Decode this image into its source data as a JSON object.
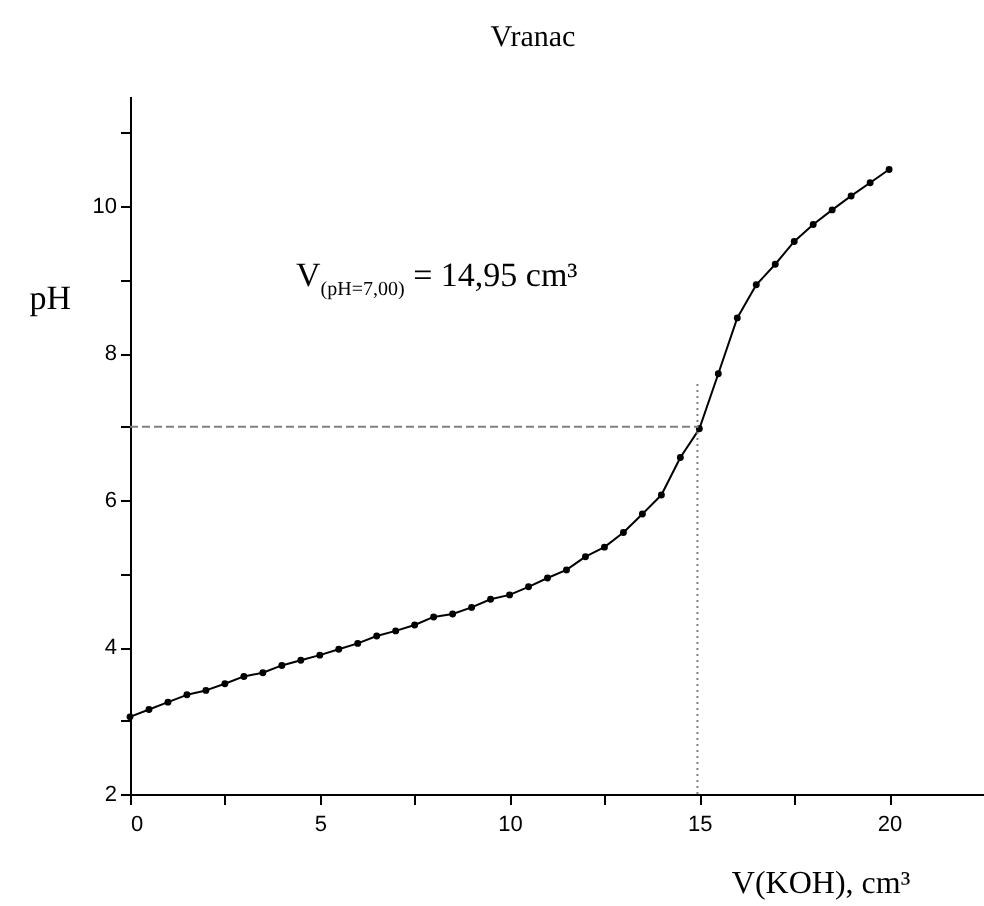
{
  "chart_data": {
    "type": "line",
    "title": "Vranac",
    "xlabel": "V(KOH), cm³",
    "ylabel": "pH",
    "x": [
      0,
      0.5,
      1,
      1.5,
      2,
      2.5,
      3,
      3.5,
      4,
      4.5,
      5,
      5.5,
      6,
      6.5,
      7,
      7.5,
      8,
      8.5,
      9,
      9.5,
      10,
      10.5,
      11,
      11.5,
      12,
      12.5,
      13,
      13.5,
      14,
      14.5,
      15,
      15.5,
      16,
      16.5,
      17,
      17.5,
      18,
      18.5,
      19,
      19.5,
      20
    ],
    "series": [
      {
        "color": "#000000",
        "values": [
          3.05,
          3.15,
          3.25,
          3.35,
          3.41,
          3.5,
          3.6,
          3.65,
          3.75,
          3.82,
          3.89,
          3.97,
          4.05,
          4.15,
          4.22,
          4.3,
          4.41,
          4.45,
          4.54,
          4.65,
          4.71,
          4.82,
          4.94,
          5.05,
          5.23,
          5.36,
          5.56,
          5.81,
          6.07,
          6.58,
          6.97,
          7.72,
          8.48,
          8.93,
          9.21,
          9.52,
          9.75,
          9.95,
          10.14,
          10.32,
          10.5
        ]
      }
    ],
    "xlim": [
      0,
      22.5
    ],
    "ylim": [
      2,
      11.5
    ],
    "xticks": [
      0,
      {
        "value": 2.5,
        "label": null
      },
      5,
      {
        "value": 7.5,
        "label": null
      },
      10,
      {
        "value": 12.5,
        "label": null
      },
      15,
      {
        "value": 17.5,
        "label": null
      },
      20
    ],
    "yticks": [
      2,
      {
        "value": 3,
        "label": null
      },
      4,
      {
        "value": 5,
        "label": null
      },
      6,
      {
        "value": 7,
        "label": null
      },
      8,
      {
        "value": 9,
        "label": null
      },
      10,
      {
        "value": 11,
        "label": null
      }
    ],
    "ref_lines": [
      {
        "axis": "y",
        "value": 7,
        "color": "#808080",
        "line_style": "dashed"
      },
      {
        "axis": "x",
        "value": 14.95,
        "color": "#808080",
        "line_style": "dotted"
      }
    ],
    "annotations": [
      "V$_{(pH=7,00)}$ = 14,95 cm³"
    ],
    "marker": "circle",
    "line_style": "solid",
    "grid": false,
    "legend": false
  }
}
